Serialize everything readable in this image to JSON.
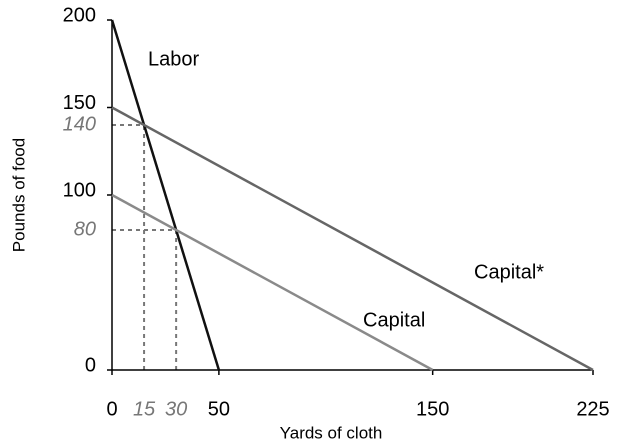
{
  "chart_data": {
    "type": "line",
    "xlabel": "Yards of cloth",
    "ylabel": "Pounds of food",
    "xlim": [
      0,
      225
    ],
    "ylim": [
      0,
      200
    ],
    "xticks": [
      0,
      50,
      150,
      225
    ],
    "yticks": [
      0,
      100,
      150,
      200
    ],
    "series": [
      {
        "name": "Labor",
        "color": "#111111",
        "x": [
          0,
          50
        ],
        "values": [
          200,
          0
        ]
      },
      {
        "name": "Capital",
        "color": "#8a8a8a",
        "x": [
          0,
          150
        ],
        "values": [
          100,
          0
        ]
      },
      {
        "name": "Capital*",
        "color": "#666666",
        "x": [
          0,
          225
        ],
        "values": [
          150,
          0
        ]
      }
    ],
    "guides": [
      {
        "x": 15,
        "y": 140
      },
      {
        "x": 30,
        "y": 80
      }
    ]
  }
}
